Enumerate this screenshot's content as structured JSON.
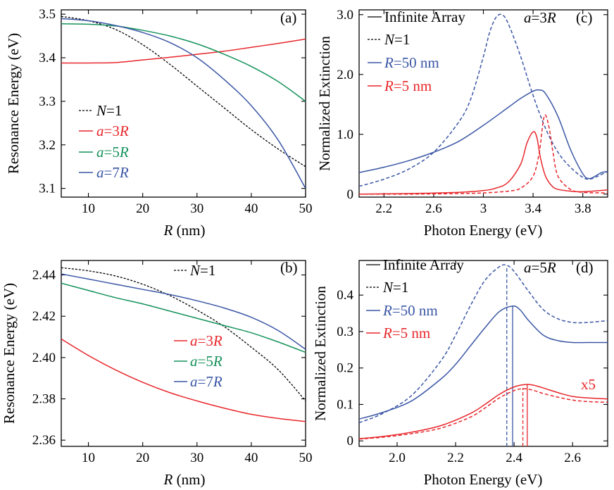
{
  "colors": {
    "black": "#000000",
    "red": "#e8262b",
    "green": "#14925a",
    "blue": "#3a56a5"
  },
  "chart_data": [
    {
      "id": "a",
      "type": "line",
      "panel_label": "(a)",
      "xlabel": "R (nm)",
      "ylabel": "Resonance Energy (eV)",
      "xlim": [
        5,
        50
      ],
      "ylim": [
        3.08,
        3.51
      ],
      "xticks": [
        10,
        20,
        30,
        40,
        50
      ],
      "yticks": [
        3.1,
        3.2,
        3.3,
        3.4,
        3.5
      ],
      "yprecision": 1,
      "legend_position": "lower-left",
      "series": [
        {
          "name": "N=1",
          "color": "black",
          "dash": true,
          "x": [
            5,
            10,
            15,
            20,
            25,
            30,
            35,
            40,
            45,
            50
          ],
          "y": [
            3.495,
            3.485,
            3.465,
            3.43,
            3.385,
            3.335,
            3.285,
            3.235,
            3.19,
            3.15
          ]
        },
        {
          "name": "a=3R",
          "color": "red",
          "dash": false,
          "x": [
            5,
            10,
            15,
            20,
            25,
            30,
            35,
            40,
            45,
            50
          ],
          "y": [
            3.388,
            3.388,
            3.389,
            3.395,
            3.401,
            3.408,
            3.415,
            3.424,
            3.433,
            3.443
          ]
        },
        {
          "name": "a=5R",
          "color": "green",
          "dash": false,
          "x": [
            5,
            10,
            15,
            20,
            25,
            30,
            35,
            40,
            45,
            50
          ],
          "y": [
            3.478,
            3.477,
            3.473,
            3.463,
            3.45,
            3.432,
            3.408,
            3.38,
            3.345,
            3.3
          ]
        },
        {
          "name": "a=7R",
          "color": "blue",
          "dash": false,
          "x": [
            5,
            10,
            15,
            20,
            25,
            30,
            35,
            40,
            45,
            50
          ],
          "y": [
            3.49,
            3.485,
            3.474,
            3.458,
            3.435,
            3.4,
            3.35,
            3.29,
            3.21,
            3.1
          ]
        }
      ]
    },
    {
      "id": "b",
      "type": "line",
      "panel_label": "(b)",
      "xlabel": "R (nm)",
      "ylabel": "Resonance Energy (eV)",
      "xlim": [
        5,
        50
      ],
      "ylim": [
        2.357,
        2.447
      ],
      "xticks": [
        10,
        20,
        30,
        40,
        50
      ],
      "yticks": [
        2.36,
        2.38,
        2.4,
        2.42,
        2.44
      ],
      "yprecision": 2,
      "legend_position": "center-right",
      "series": [
        {
          "name": "N=1",
          "color": "black",
          "dash": true,
          "x": [
            5,
            10,
            15,
            20,
            25,
            30,
            35,
            40,
            45,
            50
          ],
          "y": [
            2.4435,
            2.442,
            2.4395,
            2.4355,
            2.43,
            2.423,
            2.415,
            2.405,
            2.394,
            2.379
          ]
        },
        {
          "name": "a=3R",
          "color": "red",
          "dash": false,
          "x": [
            5,
            10,
            15,
            20,
            25,
            30,
            35,
            40,
            45,
            50
          ],
          "y": [
            2.409,
            2.401,
            2.394,
            2.388,
            2.383,
            2.379,
            2.3755,
            2.3725,
            2.3705,
            2.369
          ]
        },
        {
          "name": "a=5R",
          "color": "green",
          "dash": false,
          "x": [
            5,
            10,
            15,
            20,
            25,
            30,
            35,
            40,
            45,
            50
          ],
          "y": [
            2.436,
            2.4325,
            2.429,
            2.426,
            2.4225,
            2.419,
            2.4155,
            2.412,
            2.4075,
            2.4025
          ]
        },
        {
          "name": "a=7R",
          "color": "blue",
          "dash": false,
          "x": [
            5,
            10,
            15,
            20,
            25,
            30,
            35,
            40,
            45,
            50
          ],
          "y": [
            2.4405,
            2.438,
            2.4355,
            2.433,
            2.4305,
            2.4275,
            2.424,
            2.4195,
            2.413,
            2.404
          ]
        }
      ]
    },
    {
      "id": "c",
      "type": "line",
      "panel_label": "(c)",
      "annotation": "a=3R",
      "xlabel": "Photon Energy (eV)",
      "ylabel": "Normalized Extinction",
      "xlim": [
        2.0,
        4.0
      ],
      "ylim": [
        -0.05,
        3.08
      ],
      "xticks": [
        2.2,
        2.6,
        3.0,
        3.4,
        3.8
      ],
      "yticks": [
        0,
        1.0,
        2.0,
        3.0
      ],
      "ytick_labels": [
        "0",
        "1.0",
        "2.0",
        "3.0"
      ],
      "yprecision": 1,
      "legend_position": "upper-left",
      "legend": [
        {
          "text": "Infinite Array",
          "color": "black",
          "dash": false
        },
        {
          "text": "N=1",
          "color": "black",
          "dash": true
        },
        {
          "text": "R=50 nm",
          "color": "blue",
          "dash": false
        },
        {
          "text": "R=5 nm",
          "color": "red",
          "dash": false
        }
      ],
      "series": [
        {
          "color": "blue",
          "dash": true,
          "x": [
            2.0,
            2.2,
            2.4,
            2.6,
            2.8,
            2.9,
            3.0,
            3.05,
            3.1,
            3.15,
            3.2,
            3.3,
            3.4,
            3.5,
            3.6,
            3.7,
            3.8,
            3.85,
            3.9,
            4.0
          ],
          "y": [
            0.13,
            0.25,
            0.42,
            0.7,
            1.2,
            1.6,
            2.3,
            2.7,
            2.95,
            3.0,
            2.85,
            2.3,
            1.65,
            1.1,
            0.7,
            0.45,
            0.28,
            0.25,
            0.28,
            0.38
          ]
        },
        {
          "color": "blue",
          "dash": false,
          "x": [
            2.0,
            2.2,
            2.4,
            2.6,
            2.8,
            3.0,
            3.2,
            3.3,
            3.4,
            3.45,
            3.5,
            3.6,
            3.7,
            3.8,
            3.85,
            3.9,
            3.95,
            4.0
          ],
          "y": [
            0.36,
            0.45,
            0.56,
            0.7,
            0.88,
            1.15,
            1.45,
            1.6,
            1.72,
            1.74,
            1.68,
            1.3,
            0.75,
            0.34,
            0.26,
            0.3,
            0.36,
            0.38
          ]
        },
        {
          "color": "red",
          "dash": true,
          "x": [
            2.0,
            2.4,
            2.8,
            3.0,
            3.2,
            3.3,
            3.4,
            3.45,
            3.48,
            3.5,
            3.53,
            3.56,
            3.6,
            3.7,
            3.8,
            4.0
          ],
          "y": [
            0.0,
            0.0,
            0.01,
            0.02,
            0.05,
            0.1,
            0.3,
            0.7,
            1.2,
            1.32,
            1.1,
            0.7,
            0.3,
            0.08,
            0.03,
            0.02
          ]
        },
        {
          "color": "red",
          "dash": false,
          "x": [
            2.0,
            2.4,
            2.8,
            3.0,
            3.1,
            3.2,
            3.3,
            3.35,
            3.4,
            3.43,
            3.46,
            3.5,
            3.55,
            3.6,
            3.7,
            3.8,
            4.0
          ],
          "y": [
            0.0,
            0.01,
            0.03,
            0.06,
            0.1,
            0.2,
            0.5,
            0.85,
            1.04,
            0.95,
            0.6,
            0.3,
            0.14,
            0.08,
            0.05,
            0.04,
            0.07
          ]
        }
      ]
    },
    {
      "id": "d",
      "type": "line",
      "panel_label": "(d)",
      "annotation": "a=5R",
      "scale_note": "x5",
      "xlabel": "Photon Energy (eV)",
      "ylabel": "Normalized Extinction",
      "xlim": [
        1.87,
        2.72
      ],
      "ylim": [
        -0.015,
        0.495
      ],
      "xticks": [
        2.0,
        2.2,
        2.4,
        2.6
      ],
      "yticks": [
        0,
        0.1,
        0.2,
        0.3,
        0.4
      ],
      "ytick_labels": [
        "0",
        "0.1",
        "0.2",
        "0.3",
        "0.4"
      ],
      "yprecision": 1,
      "legend_position": "upper-left",
      "legend": [
        {
          "text": "Infinite Array",
          "color": "black",
          "dash": false
        },
        {
          "text": "N=1",
          "color": "black",
          "dash": true
        },
        {
          "text": "R=50 nm",
          "color": "blue",
          "dash": false
        },
        {
          "text": "R=5 nm",
          "color": "red",
          "dash": false
        }
      ],
      "vlines": [
        {
          "x": 2.375,
          "color": "blue",
          "dash": true,
          "y_top": 0.48
        },
        {
          "x": 2.395,
          "color": "blue",
          "dash": false,
          "y_top": 0.37
        },
        {
          "x": 2.43,
          "color": "red",
          "dash": true,
          "y_top": 0.145
        },
        {
          "x": 2.445,
          "color": "red",
          "dash": false,
          "y_top": 0.155
        }
      ],
      "series": [
        {
          "color": "blue",
          "dash": true,
          "x": [
            1.87,
            1.95,
            2.05,
            2.15,
            2.2,
            2.25,
            2.3,
            2.35,
            2.375,
            2.4,
            2.45,
            2.5,
            2.55,
            2.6,
            2.65,
            2.72
          ],
          "y": [
            0.05,
            0.075,
            0.125,
            0.22,
            0.29,
            0.37,
            0.44,
            0.478,
            0.482,
            0.465,
            0.41,
            0.36,
            0.335,
            0.325,
            0.325,
            0.33
          ]
        },
        {
          "color": "blue",
          "dash": false,
          "x": [
            1.87,
            1.95,
            2.05,
            2.15,
            2.2,
            2.25,
            2.3,
            2.35,
            2.395,
            2.42,
            2.45,
            2.5,
            2.55,
            2.6,
            2.65,
            2.72
          ],
          "y": [
            0.06,
            0.078,
            0.11,
            0.17,
            0.21,
            0.26,
            0.31,
            0.355,
            0.37,
            0.36,
            0.33,
            0.29,
            0.275,
            0.27,
            0.27,
            0.27
          ]
        },
        {
          "color": "red",
          "dash": true,
          "x": [
            1.87,
            1.95,
            2.05,
            2.15,
            2.25,
            2.3,
            2.35,
            2.4,
            2.43,
            2.46,
            2.5,
            2.55,
            2.6,
            2.65,
            2.72
          ],
          "y": [
            0.005,
            0.01,
            0.02,
            0.035,
            0.065,
            0.09,
            0.118,
            0.138,
            0.143,
            0.14,
            0.13,
            0.12,
            0.112,
            0.108,
            0.106
          ]
        },
        {
          "color": "red",
          "dash": false,
          "x": [
            1.87,
            1.95,
            2.05,
            2.15,
            2.25,
            2.3,
            2.35,
            2.4,
            2.445,
            2.48,
            2.52,
            2.56,
            2.6,
            2.65,
            2.72
          ],
          "y": [
            0.006,
            0.012,
            0.024,
            0.042,
            0.075,
            0.1,
            0.128,
            0.148,
            0.155,
            0.15,
            0.14,
            0.13,
            0.122,
            0.118,
            0.115
          ]
        }
      ]
    }
  ]
}
